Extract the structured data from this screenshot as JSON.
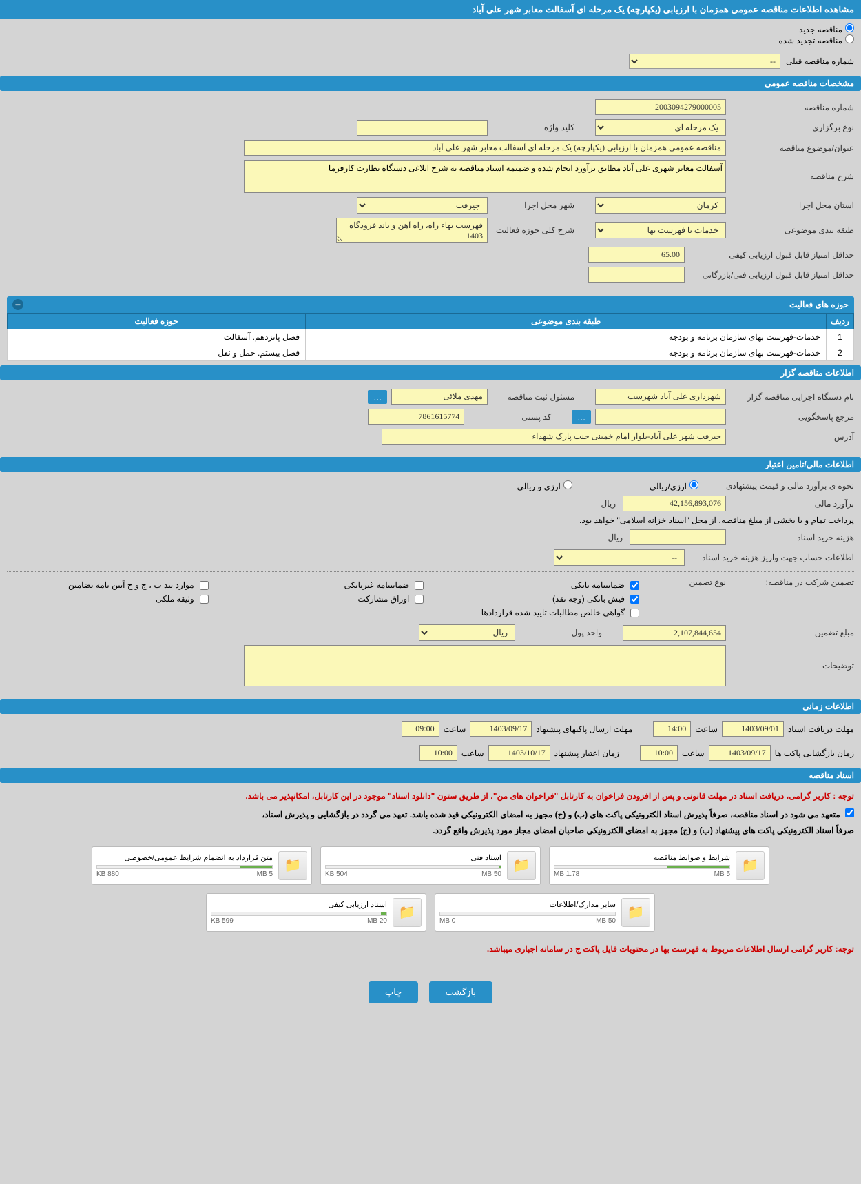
{
  "header": {
    "title": "مشاهده اطلاعات مناقصه عمومی همزمان با ارزیابی (یکپارچه) یک مرحله ای آسفالت معابر شهر علی آباد"
  },
  "radios": {
    "new_tender": "مناقصه جدید",
    "renewed_tender": "مناقصه تجدید شده",
    "prev_tender_label": "شماره مناقصه قبلی",
    "prev_tender_value": "--"
  },
  "section_general": {
    "title": "مشخصات مناقصه عمومی",
    "tender_no_label": "شماره مناقصه",
    "tender_no": "2003094279000005",
    "holding_type_label": "نوع برگزاری",
    "holding_type": "یک مرحله ای",
    "keyword_label": "کلید واژه",
    "keyword": "",
    "subject_label": "عنوان/موضوع مناقصه",
    "subject": "مناقصه عمومی همزمان با ارزیابی (یکپارچه) یک مرحله ای آسفالت معابر شهر علی آباد",
    "desc_label": "شرح مناقصه",
    "desc": "آسفالت معابر شهری علی آباد مطابق برآورد انجام شده و ضمیمه اسناد مناقصه به شرح ابلاغی دستگاه نظارت کارفرما",
    "province_label": "استان محل اجرا",
    "province": "کرمان",
    "city_label": "شهر محل اجرا",
    "city": "جیرفت",
    "category_label": "طبقه بندی موضوعی",
    "category": "خدمات با فهرست بها",
    "activity_desc_label": "شرح کلی حوزه فعالیت",
    "activity_desc": "فهرست بهاء راه، راه آهن و باند فرودگاه 1403",
    "min_quality_label": "حداقل امتیاز قابل قبول ارزیابی کیفی",
    "min_quality": "65.00",
    "min_tech_label": "حداقل امتیاز قابل قبول ارزیابی فنی/بازرگانی",
    "min_tech": ""
  },
  "activity_table": {
    "title": "حوزه های فعالیت",
    "col_idx": "ردیف",
    "col_category": "طبقه بندی موضوعی",
    "col_activity": "حوزه فعالیت",
    "rows": [
      {
        "idx": "1",
        "category": "خدمات-فهرست بهای سازمان برنامه و بودجه",
        "activity": "فصل پانزدهم. آسفالت"
      },
      {
        "idx": "2",
        "category": "خدمات-فهرست بهای سازمان برنامه و بودجه",
        "activity": "فصل بیستم. حمل و نقل"
      }
    ]
  },
  "section_bidder": {
    "title": "اطلاعات مناقصه گزار",
    "org_label": "نام دستگاه اجرایی مناقصه گزار",
    "org": "شهرداری علی آباد شهرست",
    "registrar_label": "مسئول ثبت مناقصه",
    "registrar": "مهدی ملائی",
    "contact_label": "مرجع پاسخگویی",
    "contact": "",
    "postal_label": "کد پستی",
    "postal": "7861615774",
    "address_label": "آدرس",
    "address": "جیرفت شهر علی آباد-بلوار امام خمینی جنب پارک شهداء"
  },
  "section_financial": {
    "title": "اطلاعات مالی/تامین اعتبار",
    "estimation_type_label": "نحوه ی برآورد مالی و قیمت پیشنهادی",
    "opt_arzi_riyali": "ارزی/ریالی",
    "opt_arzi_o_riyali": "ارزی و ریالی",
    "estimation_label": "برآورد مالی",
    "estimation": "42,156,893,076",
    "unit_riyal": "ریال",
    "treasury_note": "پرداخت تمام و یا بخشی از مبلغ مناقصه، از محل \"اسناد خزانه اسلامی\" خواهد بود.",
    "doc_fee_label": "هزینه خرید اسناد",
    "doc_fee": "",
    "account_label": "اطلاعات حساب جهت واریز هزینه خرید اسناد",
    "account": "--",
    "guarantee_label": "تضمین شرکت در مناقصه:",
    "guarantee_type_label": "نوع تضمین",
    "chk_bank_guarantee": "ضمانتنامه بانکی",
    "chk_nonbank_guarantee": "ضمانتنامه غیربانکی",
    "chk_regulation": "موارد بند ب ، ج و ح آیین نامه تضامین",
    "chk_cash": "فیش بانکی (وجه نقد)",
    "chk_securities": "اوراق مشارکت",
    "chk_property": "وثیقه ملکی",
    "chk_receivables": "گواهی خالص مطالبات تایید شده قراردادها",
    "guarantee_amount_label": "مبلغ تضمین",
    "guarantee_amount": "2,107,844,654",
    "currency_label": "واحد پول",
    "currency": "ریال",
    "notes_label": "توضیحات",
    "notes": ""
  },
  "section_timing": {
    "title": "اطلاعات زمانی",
    "doc_deadline_label": "مهلت دریافت اسناد",
    "doc_deadline": "1403/09/01",
    "time_label": "ساعت",
    "doc_deadline_time": "14:00",
    "envelope_send_label": "مهلت ارسال پاکتهای پیشنهاد",
    "envelope_send_date": "1403/09/17",
    "envelope_send_time": "09:00",
    "opening_label": "زمان بازگشایی پاکت ها",
    "opening_date": "1403/09/17",
    "opening_time": "10:00",
    "credit_label": "زمان اعتبار پیشنهاد",
    "credit_date": "1403/10/17",
    "credit_time": "10:00"
  },
  "section_docs": {
    "title": "اسناد مناقصه",
    "red_note": "توجه : کاربر گرامی، دریافت اسناد در مهلت قانونی و پس از افزودن فراخوان به کارتابل \"فراخوان های من\"، از طریق ستون \"دانلود اسناد\" موجود در این کارتابل، امکانپذیر می باشد.",
    "black_note1": "متعهد می شود در اسناد مناقصه، صرفاً پذیرش اسناد الکترونیکی پاکت های (ب) و (ج) مجهز به امضای الکترونیکی قید شده باشد. تعهد می گردد در بازگشایی و پذیرش اسناد،",
    "black_note2": "صرفاً اسناد الکترونیکی پاکت های پیشنهاد (ب) و (ج) مجهز به امضای الکترونیکی صاحبان امضای مجاز مورد پذیرش واقع گردد.",
    "docs": [
      {
        "title": "شرایط و ضوابط مناقصه",
        "used": "1.78 MB",
        "total": "5 MB",
        "pct": 36
      },
      {
        "title": "اسناد فنی",
        "used": "504 KB",
        "total": "50 MB",
        "pct": 1
      },
      {
        "title": "متن قرارداد به انضمام شرایط عمومی/خصوصی",
        "used": "880 KB",
        "total": "5 MB",
        "pct": 18
      },
      {
        "title": "سایر مدارک/اطلاعات",
        "used": "0 MB",
        "total": "50 MB",
        "pct": 0
      },
      {
        "title": "اسناد ارزیابی کیفی",
        "used": "599 KB",
        "total": "20 MB",
        "pct": 3
      }
    ],
    "footer_note": "توجه: کاربر گرامی ارسال اطلاعات مربوط به فهرست بها در محتویات فایل پاکت ج در سامانه اجباری میباشد."
  },
  "buttons": {
    "back": "بازگشت",
    "print": "چاپ"
  },
  "colors": {
    "header_bg": "#2890c8",
    "input_bg": "#fbf8b8",
    "page_bg": "#d4d4d4"
  }
}
